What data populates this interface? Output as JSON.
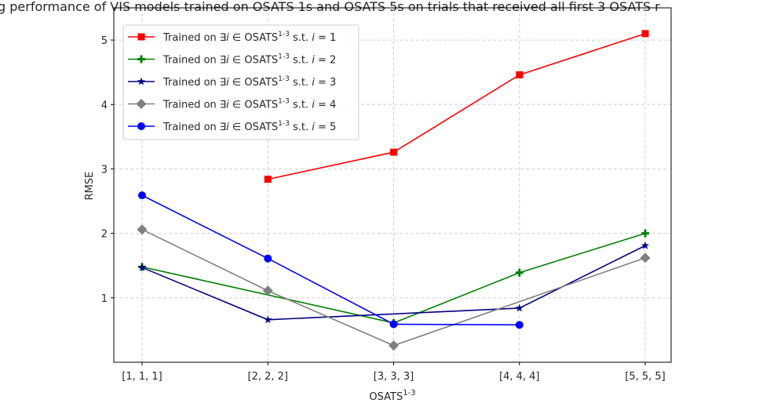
{
  "chart_data": {
    "type": "line",
    "title": "g performance of VIS models trained on OSATS 1s and OSATS 5s on trials that received all first 3 OSATS r",
    "xlabel": "OSATS",
    "xlabel_sup": "1-3",
    "ylabel": "RMSE",
    "categories": [
      "[1, 1, 1]",
      "[2, 2, 2]",
      "[3, 3, 3]",
      "[4, 4, 4]",
      "[5, 5, 5]"
    ],
    "yticks": [
      1,
      2,
      3,
      4,
      5
    ],
    "ylim": [
      0.0,
      5.5
    ],
    "grid": true,
    "legend_placement": "upper-left",
    "series": [
      {
        "name_pre": "Trained on ∃",
        "name_i": "i",
        "name_mid": " ∈ OSATS",
        "name_sup": "1-3",
        "name_post": " s.t. ",
        "name_eq": " = 1",
        "color": "#ff0000",
        "marker": "square",
        "values": [
          null,
          2.84,
          3.26,
          4.46,
          5.1
        ]
      },
      {
        "name_pre": "Trained on ∃",
        "name_i": "i",
        "name_mid": " ∈ OSATS",
        "name_sup": "1-3",
        "name_post": " s.t. ",
        "name_eq": " = 2",
        "color": "#008000",
        "marker": "plus",
        "values": [
          1.48,
          null,
          0.61,
          1.39,
          2.0
        ]
      },
      {
        "name_pre": "Trained on ∃",
        "name_i": "i",
        "name_mid": " ∈ OSATS",
        "name_sup": "1-3",
        "name_post": " s.t. ",
        "name_eq": " = 3",
        "color": "#000080",
        "marker": "star",
        "values": [
          1.47,
          0.66,
          null,
          0.84,
          1.81
        ]
      },
      {
        "name_pre": "Trained on ∃",
        "name_i": "i",
        "name_mid": " ∈ OSATS",
        "name_sup": "1-3",
        "name_post": " s.t. ",
        "name_eq": " = 4",
        "color": "#808080",
        "marker": "diamond",
        "values": [
          2.06,
          1.11,
          0.26,
          null,
          1.62
        ]
      },
      {
        "name_pre": "Trained on ∃",
        "name_i": "i",
        "name_mid": " ∈ OSATS",
        "name_sup": "1-3",
        "name_post": " s.t. ",
        "name_eq": " = 5",
        "color": "#0000ff",
        "marker": "circle",
        "values": [
          2.59,
          1.61,
          0.59,
          0.58,
          null
        ]
      }
    ]
  }
}
